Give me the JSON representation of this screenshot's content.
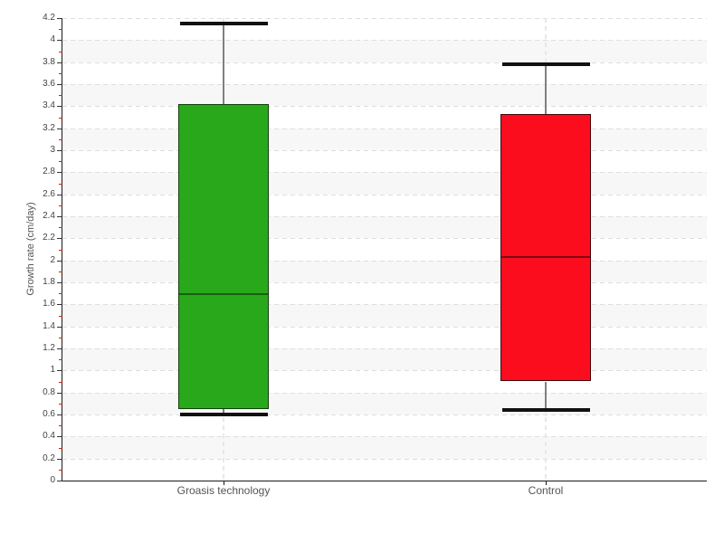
{
  "chart_data": {
    "type": "boxplot",
    "title": "",
    "xlabel": "",
    "ylabel": "Growth rate (cm/day)",
    "ylim": [
      0,
      4.2
    ],
    "y_major_step": 0.2,
    "y_minor_step": 0.1,
    "y_tick_labels": [
      "0",
      "0.2",
      "0.4",
      "0.6",
      "0.8",
      "1",
      "1.2",
      "1.4",
      "1.6",
      "1.8",
      "2",
      "2.2",
      "2.4",
      "2.6",
      "2.8",
      "3",
      "3.2",
      "3.4",
      "3.6",
      "3.8",
      "4",
      "4.2"
    ],
    "legend": "none",
    "grid": {
      "horizontal_dashed_lines": true,
      "alternating_shaded_bands": true,
      "category_drop_lines": true
    },
    "categories": [
      "Groasis technology",
      "Control"
    ],
    "series": [
      {
        "name": "Groasis technology",
        "low": 0.6,
        "q1": 0.65,
        "median": 1.69,
        "q3": 3.42,
        "high": 4.15,
        "fill": "#29a81b",
        "border": "#123f09",
        "median_color": "#156010"
      },
      {
        "name": "Control",
        "low": 0.64,
        "q1": 0.9,
        "median": 2.03,
        "q3": 3.33,
        "high": 3.78,
        "fill": "#fc0d1e",
        "border": "#42080d",
        "median_color": "#7d0a14"
      }
    ]
  },
  "style": {
    "background": "#ffffff",
    "band_color": "#f7f7f7",
    "grid_color": "#dedede",
    "drop_line_color": "#e8e8e8",
    "axis_color": "#1a1a1a",
    "major_tick_color": "#333333",
    "minor_tick_color": "#cc2200",
    "tick_label_color": "#444444",
    "category_label_color": "#555555",
    "axis_title_color": "#555555",
    "whisker_stem_color": "#808080",
    "whisker_cap_color": "#111111"
  }
}
